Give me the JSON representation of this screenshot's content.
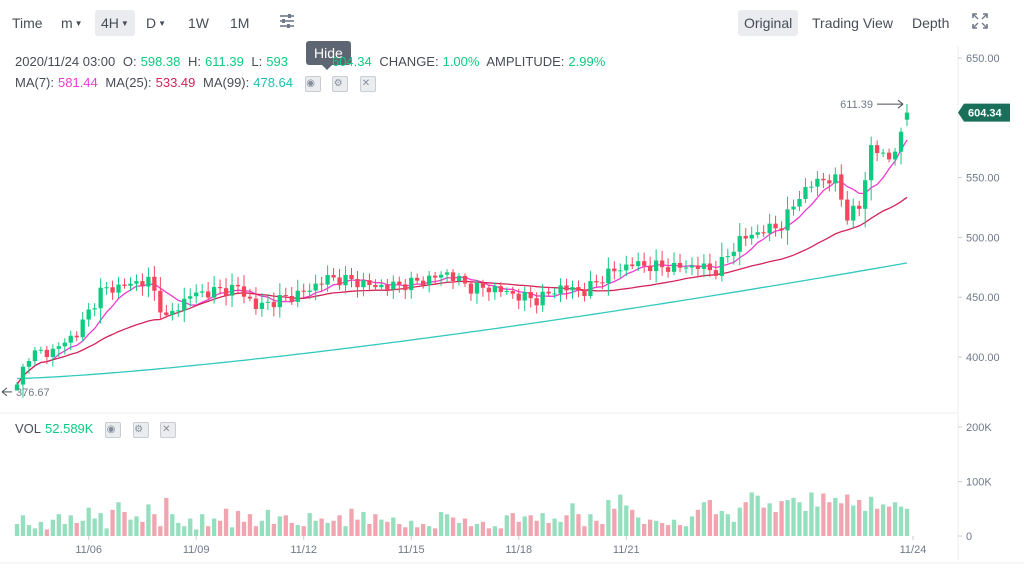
{
  "toolbar": {
    "items": [
      {
        "label": "Time"
      },
      {
        "label": "m"
      },
      {
        "label": "4H"
      },
      {
        "label": "D"
      },
      {
        "label": "1W"
      },
      {
        "label": "1M"
      }
    ],
    "views": [
      {
        "label": "Original"
      },
      {
        "label": "Trading View"
      },
      {
        "label": "Depth"
      }
    ],
    "active_interval": "4H",
    "active_view": "Original"
  },
  "tooltip": "Hide",
  "ohlc": {
    "datetime": "2020/11/24 03:00",
    "o_label": "O:",
    "o": "598.38",
    "h_label": "H:",
    "h": "611.39",
    "l_label": "L:",
    "l": "593",
    "c": "604.34",
    "change_label": "CHANGE:",
    "change": "1.00%",
    "amplitude_label": "AMPLITUDE:",
    "amplitude": "2.99%"
  },
  "ma": {
    "ma7_label": "MA(7):",
    "ma7": "581.44",
    "ma25_label": "MA(25):",
    "ma25": "533.49",
    "ma99_label": "MA(99):",
    "ma99": "478.64"
  },
  "vol": {
    "label": "VOL",
    "value": "52.589K"
  },
  "colors": {
    "up": "#0ecb81",
    "down": "#f6465d",
    "vol_up": "#96dfbe",
    "vol_down": "#f0a5b0",
    "ma7": "#f03bd0",
    "ma25": "#d4245a",
    "ma99": "#33c9bd",
    "price_tag": "#1a6f5a"
  },
  "chart_data": {
    "type": "candlestick",
    "price_axis": {
      "ticks": [
        "650.00",
        "550.00",
        "500.00",
        "450.00",
        "400.00"
      ],
      "ylim": [
        360,
        655
      ]
    },
    "volume_axis": {
      "ticks": [
        "200K",
        "100K",
        "0"
      ],
      "ylim": [
        0,
        200
      ]
    },
    "x_ticks": [
      "11/06",
      "11/09",
      "11/12",
      "11/15",
      "11/18",
      "11/21",
      "11/24"
    ],
    "current_price_label": "604.34",
    "high_marker": "611.39",
    "low_marker": "376.67",
    "close_anchors": [
      {
        "t": 0,
        "close": 377
      },
      {
        "t": 2,
        "close": 402
      },
      {
        "t": 6,
        "close": 405
      },
      {
        "t": 10,
        "close": 420
      },
      {
        "t": 14,
        "close": 455
      },
      {
        "t": 18,
        "close": 460
      },
      {
        "t": 22,
        "close": 464
      },
      {
        "t": 25,
        "close": 432
      },
      {
        "t": 29,
        "close": 452
      },
      {
        "t": 33,
        "close": 455
      },
      {
        "t": 37,
        "close": 458
      },
      {
        "t": 40,
        "close": 442
      },
      {
        "t": 44,
        "close": 448
      },
      {
        "t": 48,
        "close": 454
      },
      {
        "t": 52,
        "close": 466
      },
      {
        "t": 56,
        "close": 464
      },
      {
        "t": 60,
        "close": 459
      },
      {
        "t": 64,
        "close": 460
      },
      {
        "t": 68,
        "close": 464
      },
      {
        "t": 72,
        "close": 470
      },
      {
        "t": 76,
        "close": 458
      },
      {
        "t": 80,
        "close": 457
      },
      {
        "t": 84,
        "close": 451
      },
      {
        "t": 87,
        "close": 448
      },
      {
        "t": 91,
        "close": 458
      },
      {
        "t": 95,
        "close": 455
      },
      {
        "t": 99,
        "close": 470
      },
      {
        "t": 103,
        "close": 478
      },
      {
        "t": 106,
        "close": 476
      },
      {
        "t": 110,
        "close": 475
      },
      {
        "t": 114,
        "close": 476
      },
      {
        "t": 117,
        "close": 472
      },
      {
        "t": 121,
        "close": 498
      },
      {
        "t": 125,
        "close": 506
      },
      {
        "t": 128,
        "close": 510
      },
      {
        "t": 131,
        "close": 535
      },
      {
        "t": 134,
        "close": 548
      },
      {
        "t": 137,
        "close": 548
      },
      {
        "t": 139,
        "close": 518
      },
      {
        "t": 141,
        "close": 525
      },
      {
        "t": 143,
        "close": 575
      },
      {
        "t": 146,
        "close": 566
      },
      {
        "t": 149,
        "close": 592
      },
      {
        "t": 151,
        "close": 604
      }
    ],
    "volumes": [
      22,
      38,
      20,
      14,
      26,
      12,
      30,
      40,
      22,
      38,
      24,
      28,
      52,
      32,
      42,
      14,
      48,
      62,
      44,
      30,
      36,
      26,
      58,
      40,
      18,
      70,
      40,
      24,
      18,
      32,
      12,
      40,
      18,
      32,
      28,
      50,
      16,
      46,
      26,
      40,
      18,
      28,
      48,
      22,
      36,
      38,
      24,
      20,
      18,
      42,
      28,
      32,
      24,
      28,
      38,
      18,
      50,
      30,
      44,
      22,
      40,
      30,
      26,
      34,
      22,
      16,
      28,
      16,
      22,
      18,
      14,
      44,
      40,
      34,
      24,
      32,
      18,
      22,
      26,
      14,
      18,
      14,
      38,
      42,
      26,
      36,
      38,
      28,
      42,
      24,
      32,
      26,
      38,
      60,
      40,
      18,
      40,
      28,
      22,
      66,
      50,
      76,
      56,
      48,
      34,
      22,
      30,
      28,
      24,
      20,
      30,
      20,
      18,
      36,
      48,
      62,
      66,
      40,
      46,
      40,
      26,
      52,
      62,
      80,
      74,
      52,
      60,
      44,
      64,
      66,
      70,
      62,
      46,
      80,
      54,
      78,
      62,
      70,
      60,
      76,
      56,
      66,
      46,
      72,
      50,
      58,
      54,
      62,
      54,
      50
    ],
    "ma_last": {
      "ma7": 581.44,
      "ma25": 533.49,
      "ma99": 478.64
    }
  }
}
